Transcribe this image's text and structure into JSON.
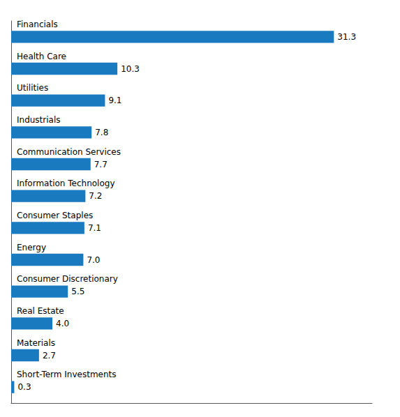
{
  "chart_data": {
    "type": "bar",
    "orientation": "horizontal",
    "categories": [
      "Short-Term Investments",
      "Materials",
      "Real Estate",
      "Consumer Discretionary",
      "Energy",
      "Consumer Staples",
      "Information Technology",
      "Communication Services",
      "Industrials",
      "Utilities",
      "Health Care",
      "Financials"
    ],
    "values": [
      0.3,
      2.7,
      4.0,
      5.5,
      7.0,
      7.1,
      7.2,
      7.7,
      7.8,
      9.1,
      10.3,
      31.3
    ],
    "value_labels": [
      "0.3",
      "2.7",
      "4.0",
      "5.5",
      "7.0",
      "7.1",
      "7.2",
      "7.7",
      "7.8",
      "9.1",
      "10.3",
      "31.3"
    ],
    "color": "#1a7abf",
    "xlim": [
      0,
      35
    ],
    "grid": false,
    "data_labels": true,
    "tick_labels": "y"
  }
}
